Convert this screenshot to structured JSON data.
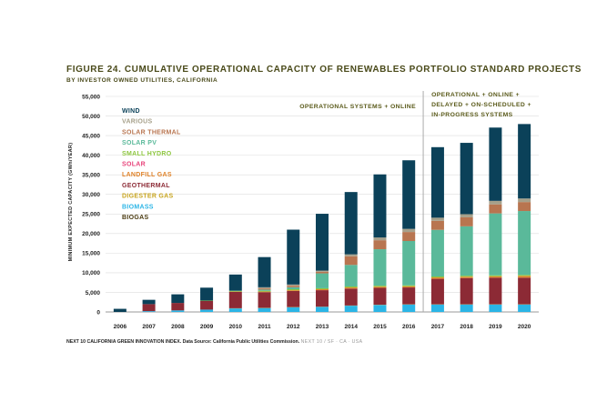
{
  "figure": {
    "title": "FIGURE 24. CUMULATIVE OPERATIONAL CAPACITY OF RENEWABLES PORTFOLIO STANDARD PROJECTS",
    "subtitle": "BY INVESTOR OWNED UTILITIES, CALIFORNIA"
  },
  "footer": {
    "source": "NEXT 10 CALIFORNIA GREEN INNOVATION INDEX. Data Source: California Public Utilities Commission.",
    "tail": "NEXT 10 / SF · CA · USA"
  },
  "chart_data": {
    "type": "bar",
    "stacked": true,
    "title": "FIGURE 24. CUMULATIVE OPERATIONAL CAPACITY OF RENEWABLES PORTFOLIO STANDARD PROJECTS",
    "subtitle": "BY INVESTOR OWNED UTILITIES, CALIFORNIA",
    "xlabel": "",
    "ylabel": "MINIMUM EXPECTED CAPACITY (GWh/YEAR)",
    "ylim": [
      0,
      55000
    ],
    "yticks": [
      "0",
      "5,000",
      "10,000",
      "15,000",
      "20,000",
      "25,000",
      "30,000",
      "35,000",
      "40,000",
      "45,000",
      "50,000",
      "55,000"
    ],
    "grid": true,
    "legend_position": "top-left",
    "categories": [
      "2006",
      "2007",
      "2008",
      "2009",
      "2010",
      "2011",
      "2012",
      "2013",
      "2014",
      "2015",
      "2016",
      "2017",
      "2018",
      "2019",
      "2020"
    ],
    "divider_after": "2016",
    "annotations": [
      {
        "lines": [
          "OPERATIONAL SYSTEMS + ONLINE"
        ],
        "region": "2006-2016"
      },
      {
        "lines": [
          "OPERATIONAL + ONLINE +",
          "DELAYED + ON-SCHEDULED +",
          "IN-PROGRESS SYSTEMS"
        ],
        "region": "2017-2020"
      }
    ],
    "series": [
      {
        "name": "BIOGAS",
        "color": "#4a3a10",
        "values": [
          0,
          0,
          0,
          0,
          0,
          0,
          0,
          0,
          0,
          0,
          0,
          0,
          0,
          0,
          0
        ]
      },
      {
        "name": "BIOMASS",
        "color": "#2bb5e6",
        "values": [
          0,
          200,
          400,
          600,
          900,
          1000,
          1200,
          1300,
          1600,
          1800,
          1900,
          1900,
          1900,
          1900,
          1900
        ]
      },
      {
        "name": "DIGESTER GAS",
        "color": "#c8a51e",
        "values": [
          0,
          0,
          0,
          0,
          50,
          50,
          50,
          50,
          50,
          50,
          50,
          50,
          50,
          50,
          50
        ]
      },
      {
        "name": "GEOTHERMAL",
        "color": "#8c2a35",
        "values": [
          0,
          1800,
          1900,
          2200,
          4200,
          4000,
          4100,
          4200,
          4300,
          4300,
          4300,
          6500,
          6700,
          6800,
          6800
        ]
      },
      {
        "name": "LANDFILL GAS",
        "color": "#e0832a",
        "values": [
          0,
          0,
          0,
          0,
          50,
          150,
          200,
          250,
          300,
          300,
          300,
          350,
          350,
          350,
          450
        ]
      },
      {
        "name": "SOLAR",
        "color": "#e8437a",
        "values": [
          0,
          0,
          0,
          0,
          0,
          0,
          0,
          0,
          0,
          0,
          0,
          0,
          0,
          0,
          0
        ]
      },
      {
        "name": "SMALL HYDRO",
        "color": "#8dc63f",
        "values": [
          0,
          0,
          0,
          100,
          150,
          200,
          250,
          250,
          250,
          250,
          250,
          250,
          250,
          250,
          250
        ]
      },
      {
        "name": "SOLAR PV",
        "color": "#5ab99a",
        "values": [
          0,
          0,
          0,
          0,
          100,
          300,
          500,
          3800,
          5500,
          9300,
          11300,
          11900,
          12600,
          15800,
          16300
        ]
      },
      {
        "name": "SOLAR THERMAL",
        "color": "#b87550",
        "values": [
          0,
          0,
          0,
          0,
          0,
          300,
          400,
          400,
          2200,
          2300,
          2300,
          2300,
          2300,
          2300,
          2300
        ]
      },
      {
        "name": "VARIOUS",
        "color": "#a6a08a",
        "values": [
          0,
          0,
          0,
          0,
          0,
          300,
          300,
          300,
          500,
          700,
          800,
          800,
          800,
          900,
          900
        ]
      },
      {
        "name": "WIND",
        "color": "#0b4159",
        "values": [
          800,
          1100,
          2200,
          3300,
          4100,
          7700,
          14000,
          14500,
          15900,
          16100,
          17500,
          18000,
          18200,
          18700,
          19000
        ]
      }
    ]
  }
}
